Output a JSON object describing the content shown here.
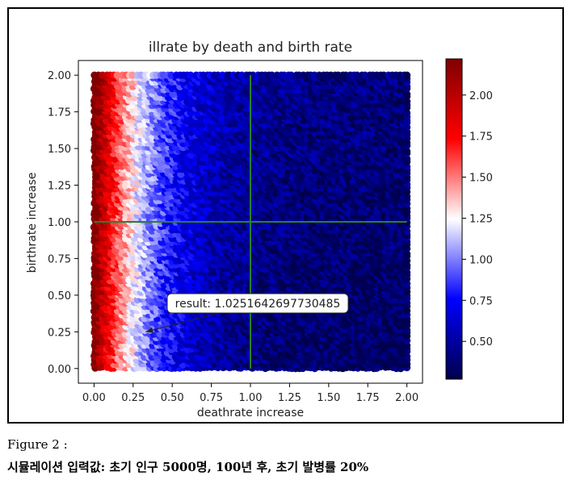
{
  "chart_data": {
    "type": "scatter",
    "title": "illrate by death and birth rate",
    "xlabel": "deathrate increase",
    "ylabel": "birthrate increase",
    "xlim": [
      -0.1,
      2.1
    ],
    "ylim": [
      -0.1,
      2.1
    ],
    "xticks": [
      "0.00",
      "0.25",
      "0.50",
      "0.75",
      "1.00",
      "1.25",
      "1.50",
      "1.75",
      "2.00"
    ],
    "yticks": [
      "0.00",
      "0.25",
      "0.50",
      "0.75",
      "1.00",
      "1.25",
      "1.50",
      "1.75",
      "2.00"
    ],
    "point_domain": {
      "x": [
        0,
        2
      ],
      "y": [
        0,
        2
      ]
    },
    "reference_lines": {
      "vertical_x": 1.0,
      "horizontal_y": 1.0,
      "color": "#2e7d32"
    },
    "annotation": {
      "text": "result: 1.0251642697730485",
      "point": [
        0.33,
        0.25
      ]
    },
    "colorbar": {
      "colormap": "seismic",
      "range": [
        0.27,
        2.22
      ],
      "ticks": [
        "0.50",
        "0.75",
        "1.00",
        "1.25",
        "1.50",
        "1.75",
        "2.00"
      ]
    },
    "color_model": "illrate decreases mainly with deathrate increase: ~2.2 at deathrate 0, ~1.25 near deathrate 0.15, below 1.0 past deathrate 0.3, ~0.3 near deathrate 2.0"
  },
  "caption": {
    "figure_label": "Figure 2 :",
    "description": "시뮬레이션 입력값: 초기 인구 5000명, 100년 후, 초기 발병률 20%"
  }
}
